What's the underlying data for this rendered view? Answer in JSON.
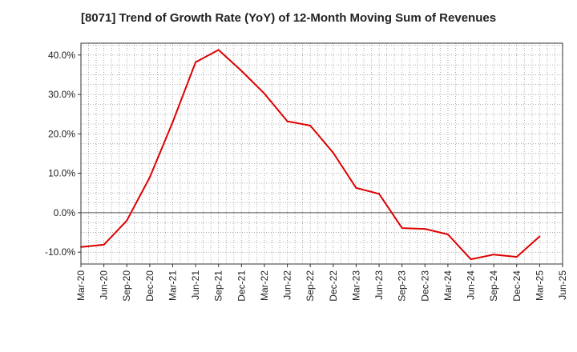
{
  "chart_data": {
    "type": "line",
    "title": "[8071]  Trend of Growth Rate (YoY) of 12-Month Moving Sum of Revenues",
    "xlabel": "",
    "ylabel": "",
    "categories": [
      "Mar-20",
      "Jun-20",
      "Sep-20",
      "Dec-20",
      "Mar-21",
      "Jun-21",
      "Sep-21",
      "Dec-21",
      "Mar-22",
      "Jun-22",
      "Sep-22",
      "Dec-22",
      "Mar-23",
      "Jun-23",
      "Sep-23",
      "Dec-23",
      "Mar-24",
      "Jun-24",
      "Sep-24",
      "Dec-24",
      "Mar-25",
      "Jun-25"
    ],
    "series": [
      {
        "name": "",
        "color": "#dd0000",
        "values": [
          -8.7,
          -8.1,
          -2.0,
          9.0,
          23.0,
          38.2,
          41.3,
          36.0,
          30.2,
          23.2,
          22.1,
          15.2,
          6.3,
          4.8,
          -3.9,
          -4.1,
          -5.5,
          -11.8,
          -10.6,
          -11.2,
          -6.0,
          null
        ]
      }
    ],
    "yticks": [
      -10,
      0,
      10,
      20,
      30,
      40
    ],
    "ytick_labels": [
      "-10.0%",
      "0.0%",
      "10.0%",
      "20.0%",
      "30.0%",
      "40.0%"
    ],
    "ylim": [
      -13,
      43
    ],
    "grid": true,
    "legend": "none"
  }
}
